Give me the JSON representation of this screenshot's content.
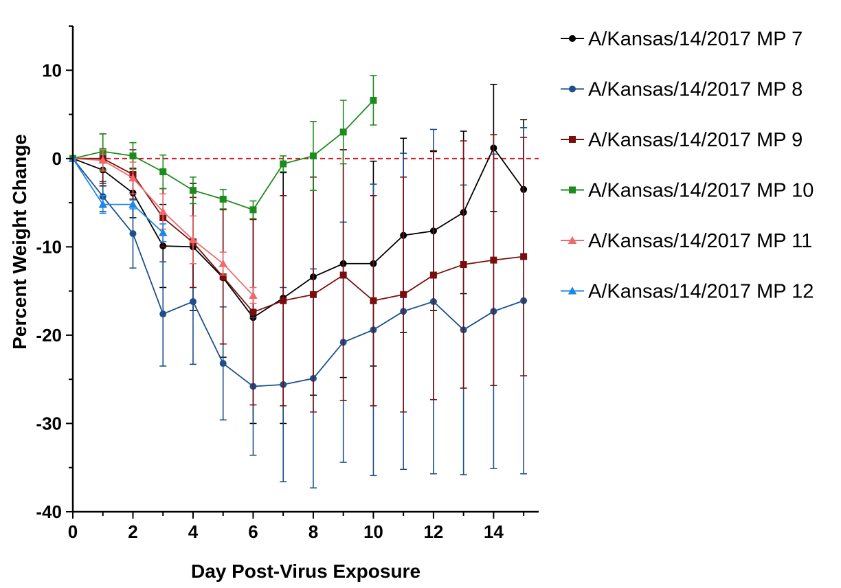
{
  "chart_data": {
    "type": "line",
    "xlabel": "Day Post-Virus Exposure",
    "ylabel": "Percent Weight Change",
    "xlim": [
      0,
      15.5
    ],
    "ylim": [
      -40,
      15
    ],
    "xticks": [
      0,
      2,
      4,
      6,
      8,
      10,
      12,
      14
    ],
    "yticks": [
      10,
      0,
      -10,
      -20,
      -30,
      -40
    ],
    "ytick_labels": [
      "10",
      "0",
      "-10",
      "-20",
      "-30",
      "-40"
    ],
    "reference_line": {
      "y": 0,
      "color": "#d6172b",
      "style": "dashed"
    },
    "legend_position": "right",
    "series": [
      {
        "name": "A/Kansas/14/2017 MP 7",
        "color": "#000000",
        "marker": "circle",
        "x": [
          0,
          1,
          2,
          3,
          4,
          5,
          6,
          7,
          8,
          9,
          10,
          11,
          12,
          13,
          14,
          15
        ],
        "y": [
          0,
          -1.3,
          -3.9,
          -9.9,
          -10.0,
          -13.5,
          -18.0,
          -15.8,
          -13.4,
          -11.9,
          -11.9,
          -8.7,
          -8.2,
          -6.1,
          1.2,
          -3.5
        ],
        "err": [
          0,
          1.8,
          2.8,
          4.7,
          7.2,
          9.0,
          12.0,
          14.2,
          13.4,
          12.9,
          11.6,
          11.0,
          9.0,
          9.2,
          7.2,
          7.9
        ]
      },
      {
        "name": "A/Kansas/14/2017 MP 8",
        "color": "#1c4f8c",
        "marker": "circle",
        "x": [
          0,
          1,
          2,
          3,
          4,
          5,
          6,
          7,
          8,
          9,
          10,
          11,
          12,
          13,
          14,
          15
        ],
        "y": [
          0,
          -4.3,
          -8.5,
          -17.6,
          -16.2,
          -23.2,
          -25.8,
          -25.6,
          -24.9,
          -20.8,
          -19.4,
          -17.3,
          -16.2,
          -19.4,
          -17.3,
          -16.1
        ],
        "err": [
          0,
          1.7,
          3.9,
          5.9,
          7.1,
          6.4,
          7.8,
          11.0,
          12.4,
          13.6,
          16.5,
          17.9,
          19.5,
          16.4,
          17.8,
          19.6
        ]
      },
      {
        "name": "A/Kansas/14/2017 MP 9",
        "color": "#7a0e0e",
        "marker": "square",
        "x": [
          0,
          1,
          2,
          3,
          4,
          5,
          6,
          7,
          8,
          9,
          10,
          11,
          12,
          13,
          14,
          15
        ],
        "y": [
          0,
          0.0,
          -1.8,
          -6.7,
          -9.5,
          -13.4,
          -17.4,
          -16.1,
          -15.4,
          -13.2,
          -16.1,
          -15.4,
          -13.2,
          -12.0,
          -11.5,
          -11.1
        ],
        "err": [
          0,
          2.8,
          2.8,
          3.3,
          5.1,
          7.6,
          10.5,
          11.9,
          13.3,
          14.2,
          11.9,
          13.3,
          14.1,
          14.0,
          14.2,
          13.5
        ]
      },
      {
        "name": "A/Kansas/14/2017 MP 10",
        "color": "#1d8c1d",
        "marker": "square",
        "x": [
          0,
          1,
          2,
          3,
          4,
          5,
          6,
          7,
          8,
          9,
          10
        ],
        "y": [
          0,
          0.8,
          0.3,
          -1.5,
          -3.6,
          -4.6,
          -5.8,
          -0.6,
          0.3,
          3.0,
          6.6
        ],
        "err": [
          0,
          2.0,
          1.5,
          1.9,
          1.5,
          1.1,
          1.0,
          0.9,
          3.9,
          3.6,
          2.8
        ]
      },
      {
        "name": "A/Kansas/14/2017 MP 11",
        "color": "#f06a6a",
        "marker": "triangle",
        "x": [
          0,
          1,
          2,
          3,
          4,
          5,
          6
        ],
        "y": [
          0,
          -0.2,
          -2.2,
          -6.0,
          -9.2,
          -11.9,
          -15.5
        ],
        "err": [
          0,
          1.2,
          1.8,
          2.0,
          2.7,
          1.3,
          0.9
        ]
      },
      {
        "name": "A/Kansas/14/2017 MP 12",
        "color": "#1e86e6",
        "marker": "triangle",
        "x": [
          0,
          1,
          2,
          3
        ],
        "y": [
          0,
          -5.2,
          -5.2,
          -8.4
        ],
        "err": [
          0,
          1.0,
          0.5,
          1.0
        ]
      }
    ]
  }
}
